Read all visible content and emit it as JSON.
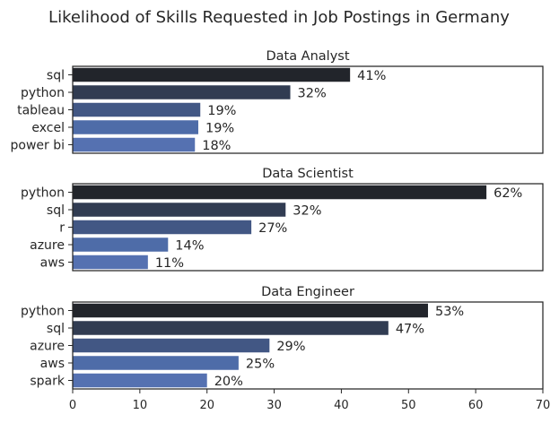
{
  "suptitle": "Likelihood of Skills Requested in Job Postings in Germany",
  "chart_data": [
    {
      "type": "bar",
      "orientation": "horizontal",
      "title": "Data Analyst",
      "categories": [
        "sql",
        "python",
        "tableau",
        "excel",
        "power bi"
      ],
      "values": [
        41.3,
        32.4,
        19.0,
        18.7,
        18.2
      ],
      "labels": [
        "41%",
        "32%",
        "19%",
        "19%",
        "18%"
      ],
      "xlim": [
        0,
        70
      ],
      "x_ticks_shown": false
    },
    {
      "type": "bar",
      "orientation": "horizontal",
      "title": "Data Scientist",
      "categories": [
        "python",
        "sql",
        "r",
        "azure",
        "aws"
      ],
      "values": [
        61.6,
        31.7,
        26.6,
        14.2,
        11.2
      ],
      "labels": [
        "62%",
        "32%",
        "27%",
        "14%",
        "11%"
      ],
      "xlim": [
        0,
        70
      ],
      "x_ticks_shown": false
    },
    {
      "type": "bar",
      "orientation": "horizontal",
      "title": "Data Engineer",
      "categories": [
        "python",
        "sql",
        "azure",
        "aws",
        "spark"
      ],
      "values": [
        52.9,
        47.0,
        29.3,
        24.7,
        20.0
      ],
      "labels": [
        "53%",
        "47%",
        "29%",
        "25%",
        "20%"
      ],
      "xlim": [
        0,
        70
      ],
      "x_ticks": [
        0,
        10,
        20,
        30,
        40,
        50,
        60,
        70
      ],
      "x_ticks_shown": true
    }
  ],
  "palette": [
    "#22252b",
    "#313c52",
    "#425784",
    "#4e6ca8",
    "#5571b1"
  ]
}
